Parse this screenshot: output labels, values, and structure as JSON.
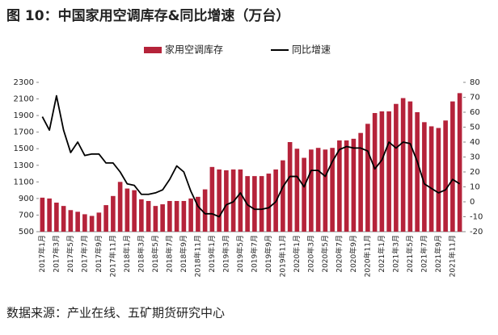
{
  "chart_data": {
    "type": "bar_line",
    "title": "图 10：中国家用空调库存&同比增速（万台）",
    "source": "数据来源：产业在线、五矿期货研究中心",
    "categories": [
      "2017年1月",
      null,
      "2017年3月",
      null,
      "2017年5月",
      null,
      "2017年7月",
      null,
      "2017年9月",
      null,
      "2017年11月",
      null,
      "2018年1月",
      null,
      "2018年3月",
      null,
      "2018年5月",
      null,
      "2018年7月",
      null,
      "2018年9月",
      null,
      "2018年11月",
      null,
      "2019年1月",
      null,
      "2019年3月",
      null,
      "2019年5月",
      null,
      "2019年7月",
      null,
      "2019年9月",
      null,
      "2019年11月",
      null,
      "2020年1月",
      null,
      "2020年3月",
      null,
      "2020年5月",
      null,
      "2020年7月",
      null,
      "2020年9月",
      null,
      "2020年11月",
      null,
      "2021年1月",
      null,
      "2021年3月",
      null,
      "2021年5月",
      null,
      "2021年7月",
      null,
      "2021年9月",
      null,
      "2021年11月",
      null
    ],
    "series": [
      {
        "name": "家用空调库存",
        "color": "#b5233a",
        "type": "bar",
        "axis": "y",
        "values": [
          910,
          900,
          850,
          810,
          760,
          740,
          710,
          690,
          730,
          820,
          930,
          1100,
          1020,
          1000,
          890,
          870,
          810,
          830,
          870,
          870,
          870,
          900,
          920,
          1010,
          1280,
          1250,
          1240,
          1250,
          1250,
          1170,
          1170,
          1170,
          1200,
          1250,
          1360,
          1580,
          1500,
          1390,
          1490,
          1510,
          1490,
          1510,
          1600,
          1600,
          1620,
          1690,
          1800,
          1930,
          1950,
          1950,
          2040,
          2110,
          2070,
          1940,
          1820,
          1770,
          1750,
          1840,
          2070,
          2170
        ]
      },
      {
        "name": "同比增速",
        "color": "#000000",
        "type": "line",
        "axis": "y2",
        "values": [
          57,
          48,
          71,
          48,
          33,
          40,
          31,
          32,
          32,
          26,
          26,
          20,
          12,
          11,
          5,
          5,
          6,
          8,
          15,
          24,
          20,
          7,
          -3,
          -8,
          -8,
          -10,
          -2,
          0,
          6,
          -2,
          -5,
          -5,
          -4,
          0,
          10,
          17,
          17,
          10,
          21,
          21,
          17,
          27,
          35,
          37,
          36,
          36,
          34,
          22,
          28,
          40,
          36,
          40,
          39,
          27,
          12,
          9,
          6,
          8,
          15,
          12
        ]
      }
    ],
    "ylim": [
      500,
      2300
    ],
    "yticks": [
      500,
      700,
      900,
      1100,
      1300,
      1500,
      1700,
      1900,
      2100,
      2300
    ],
    "y2lim": [
      -20,
      80
    ],
    "y2ticks": [
      -20,
      -10,
      0,
      10,
      20,
      30,
      40,
      50,
      60,
      70,
      80
    ],
    "legend": "top"
  }
}
